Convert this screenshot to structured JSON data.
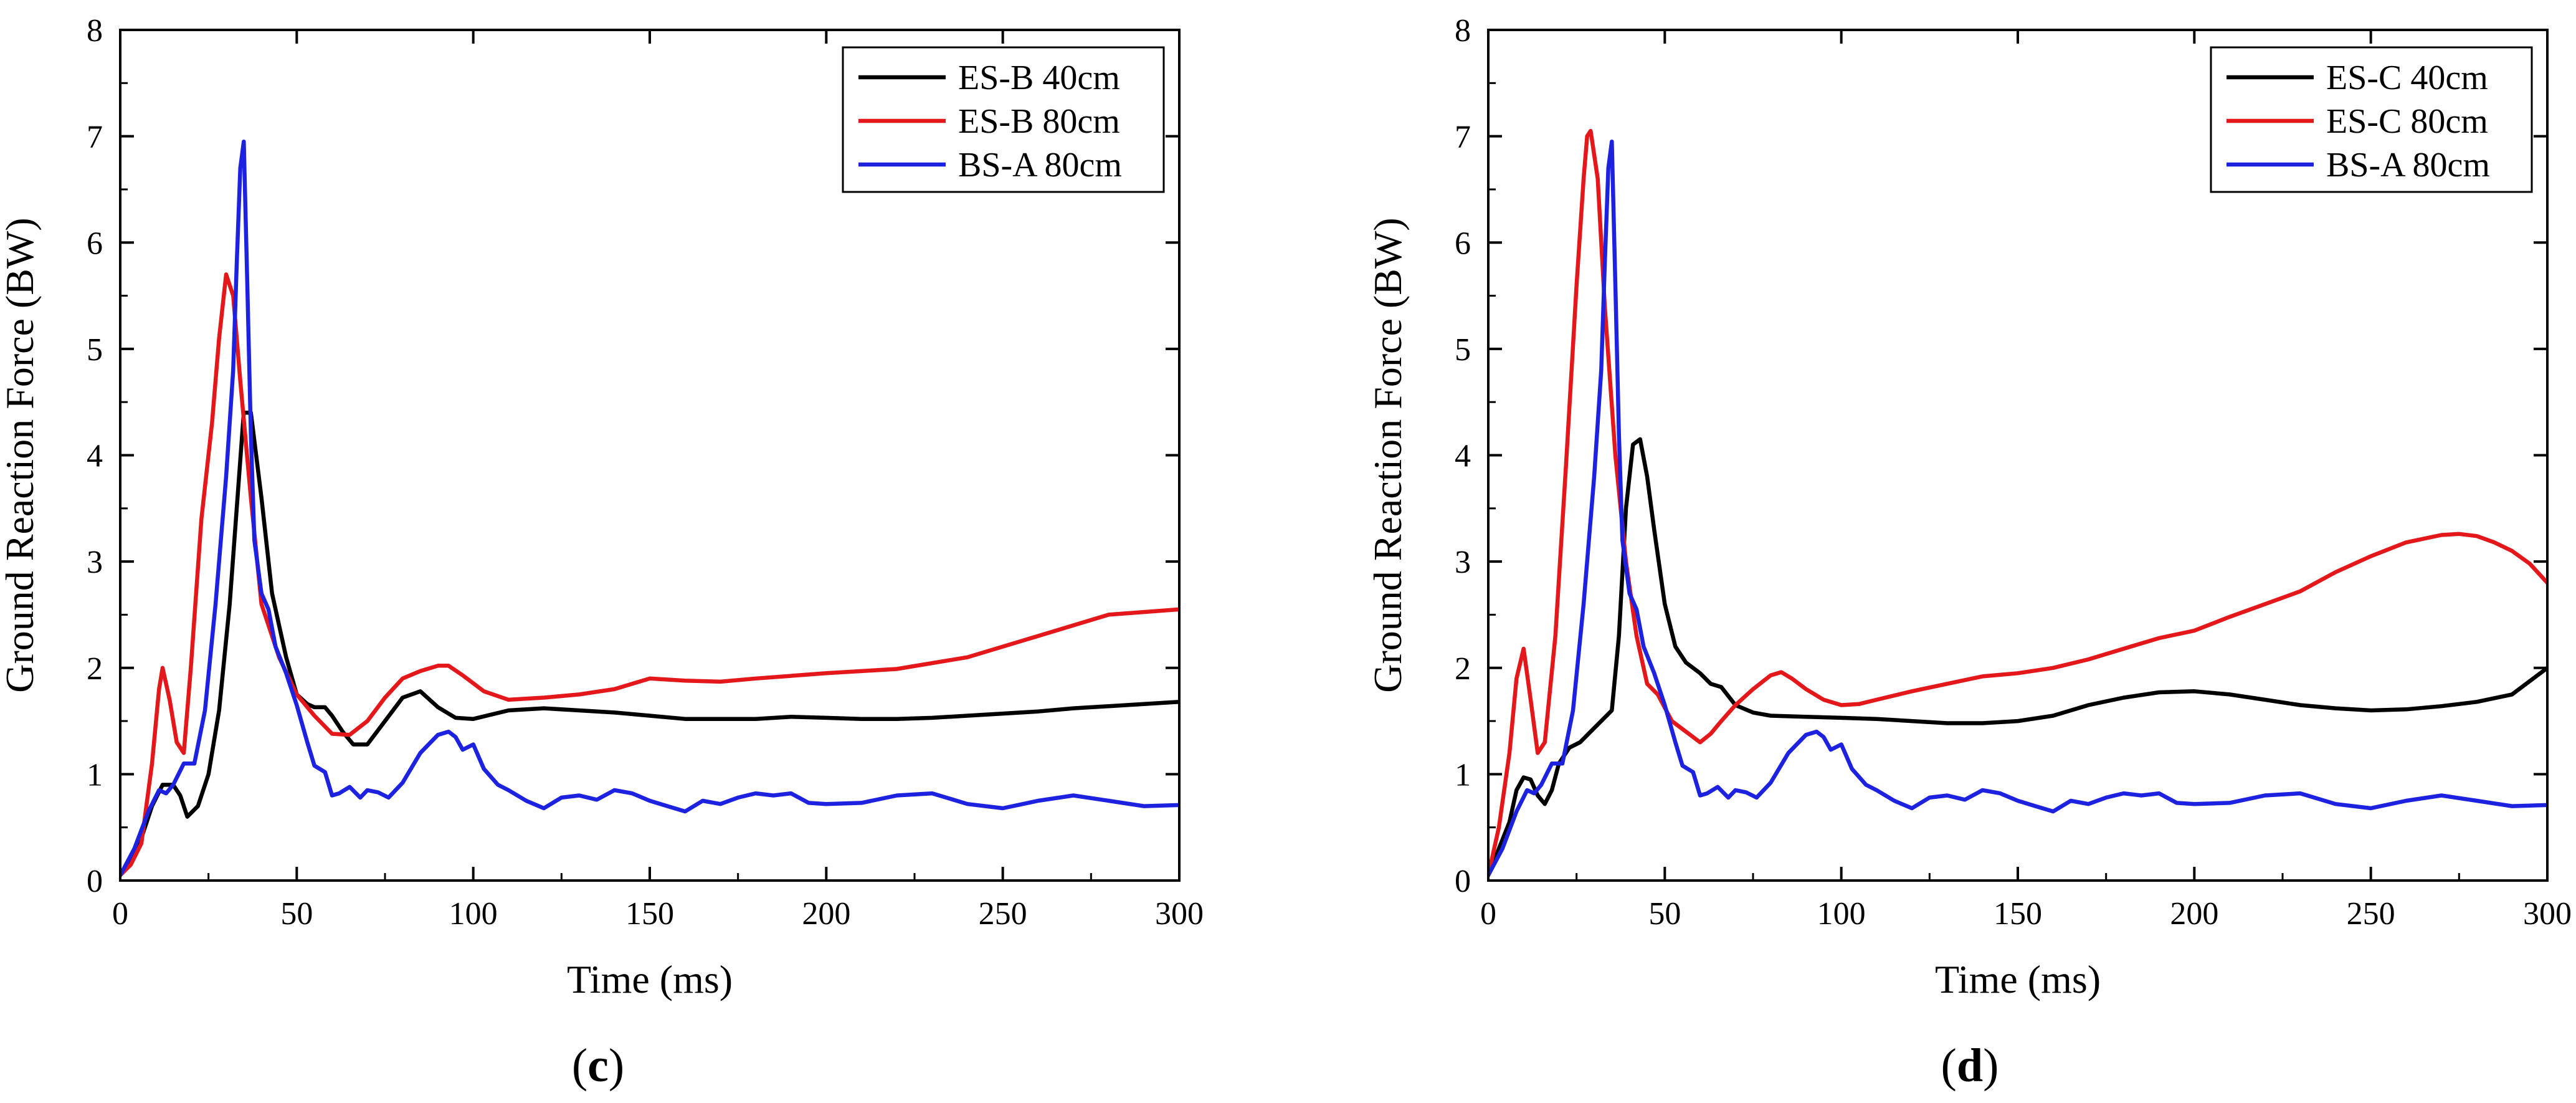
{
  "chart_data": [
    {
      "type": "line",
      "panel_label": "c",
      "xlabel": "Time (ms)",
      "ylabel": "Ground Reaction Force (BW)",
      "xlim": [
        0,
        300
      ],
      "ylim": [
        0,
        8
      ],
      "xticks": [
        0,
        50,
        100,
        150,
        200,
        250,
        300
      ],
      "yticks": [
        0,
        1,
        2,
        3,
        4,
        5,
        6,
        7,
        8
      ],
      "grid": false,
      "legend_position": "top-right",
      "series": [
        {
          "name": "ES-B 40cm",
          "color": "#000000",
          "x": [
            0,
            5,
            9,
            12,
            15,
            17,
            19,
            22,
            25,
            28,
            31,
            33,
            35,
            37,
            40,
            43,
            47,
            50,
            53,
            55,
            58,
            60,
            63,
            66,
            70,
            75,
            80,
            85,
            90,
            95,
            100,
            110,
            120,
            130,
            140,
            150,
            160,
            170,
            180,
            190,
            200,
            210,
            220,
            230,
            240,
            250,
            260,
            270,
            280,
            290,
            300
          ],
          "y": [
            0.05,
            0.3,
            0.7,
            0.9,
            0.9,
            0.8,
            0.6,
            0.7,
            1.0,
            1.6,
            2.6,
            3.5,
            4.4,
            4.4,
            3.6,
            2.7,
            2.1,
            1.75,
            1.66,
            1.63,
            1.63,
            1.55,
            1.4,
            1.28,
            1.28,
            1.5,
            1.72,
            1.78,
            1.63,
            1.53,
            1.52,
            1.6,
            1.62,
            1.6,
            1.58,
            1.55,
            1.52,
            1.52,
            1.52,
            1.54,
            1.53,
            1.52,
            1.52,
            1.53,
            1.55,
            1.57,
            1.59,
            1.62,
            1.64,
            1.66,
            1.68
          ]
        },
        {
          "name": "ES-B 80cm",
          "color": "#e4181b",
          "x": [
            0,
            3,
            6,
            9,
            11,
            12,
            14,
            16,
            18,
            20,
            23,
            26,
            28,
            30,
            32,
            34,
            37,
            40,
            45,
            50,
            55,
            60,
            65,
            70,
            75,
            80,
            85,
            90,
            93,
            97,
            103,
            110,
            120,
            130,
            140,
            150,
            160,
            170,
            180,
            200,
            220,
            240,
            260,
            280,
            300
          ],
          "y": [
            0.05,
            0.15,
            0.35,
            1.1,
            1.8,
            2.0,
            1.7,
            1.3,
            1.2,
            2.0,
            3.4,
            4.3,
            5.1,
            5.7,
            5.5,
            4.7,
            3.6,
            2.6,
            2.1,
            1.75,
            1.55,
            1.38,
            1.37,
            1.5,
            1.72,
            1.9,
            1.97,
            2.02,
            2.02,
            1.93,
            1.78,
            1.7,
            1.72,
            1.75,
            1.8,
            1.9,
            1.88,
            1.87,
            1.9,
            1.95,
            1.99,
            2.1,
            2.3,
            2.5,
            2.55
          ]
        },
        {
          "name": "BS-A 80cm",
          "color": "#1c22e0",
          "x": [
            0,
            4,
            8,
            11,
            13,
            15,
            18,
            21,
            24,
            27,
            30,
            32,
            33,
            34,
            35,
            36,
            37,
            38,
            40,
            42,
            44,
            47,
            50,
            53,
            55,
            58,
            60,
            62,
            65,
            68,
            70,
            73,
            76,
            80,
            85,
            90,
            93,
            95,
            97,
            100,
            103,
            107,
            110,
            115,
            120,
            125,
            130,
            135,
            140,
            145,
            150,
            155,
            160,
            165,
            170,
            175,
            180,
            185,
            190,
            195,
            200,
            210,
            220,
            230,
            240,
            250,
            260,
            270,
            280,
            290,
            300
          ],
          "y": [
            0.05,
            0.3,
            0.65,
            0.85,
            0.82,
            0.9,
            1.1,
            1.1,
            1.6,
            2.6,
            3.8,
            4.8,
            5.8,
            6.7,
            6.95,
            5.6,
            4.2,
            3.2,
            2.7,
            2.55,
            2.2,
            1.95,
            1.65,
            1.3,
            1.08,
            1.02,
            0.8,
            0.82,
            0.88,
            0.78,
            0.85,
            0.83,
            0.78,
            0.92,
            1.2,
            1.37,
            1.4,
            1.35,
            1.23,
            1.28,
            1.05,
            0.9,
            0.85,
            0.75,
            0.68,
            0.78,
            0.8,
            0.76,
            0.85,
            0.82,
            0.75,
            0.7,
            0.65,
            0.75,
            0.72,
            0.78,
            0.82,
            0.8,
            0.82,
            0.73,
            0.72,
            0.73,
            0.8,
            0.82,
            0.72,
            0.68,
            0.75,
            0.8,
            0.75,
            0.7,
            0.71
          ]
        }
      ]
    },
    {
      "type": "line",
      "panel_label": "d",
      "xlabel": "Time (ms)",
      "ylabel": "Ground Reaction Force (BW)",
      "xlim": [
        0,
        300
      ],
      "ylim": [
        0,
        8
      ],
      "xticks": [
        0,
        50,
        100,
        150,
        200,
        250,
        300
      ],
      "yticks": [
        0,
        1,
        2,
        3,
        4,
        5,
        6,
        7,
        8
      ],
      "grid": false,
      "legend_position": "top-right",
      "series": [
        {
          "name": "ES-C 40cm",
          "color": "#000000",
          "x": [
            0,
            3,
            6,
            8,
            10,
            12,
            14,
            16,
            18,
            20,
            23,
            26,
            29,
            32,
            35,
            37,
            39,
            41,
            43,
            45,
            47,
            50,
            53,
            56,
            60,
            63,
            66,
            70,
            75,
            80,
            90,
            100,
            110,
            120,
            130,
            140,
            150,
            160,
            170,
            180,
            190,
            200,
            210,
            220,
            230,
            240,
            250,
            260,
            270,
            280,
            290,
            300
          ],
          "y": [
            0.05,
            0.3,
            0.55,
            0.85,
            0.97,
            0.95,
            0.8,
            0.72,
            0.85,
            1.1,
            1.25,
            1.3,
            1.4,
            1.5,
            1.6,
            2.3,
            3.5,
            4.1,
            4.15,
            3.8,
            3.3,
            2.6,
            2.2,
            2.05,
            1.95,
            1.85,
            1.82,
            1.65,
            1.58,
            1.55,
            1.54,
            1.53,
            1.52,
            1.5,
            1.48,
            1.48,
            1.5,
            1.55,
            1.65,
            1.72,
            1.77,
            1.78,
            1.75,
            1.7,
            1.65,
            1.62,
            1.6,
            1.61,
            1.64,
            1.68,
            1.75,
            2.0
          ]
        },
        {
          "name": "ES-C 80cm",
          "color": "#e4181b",
          "x": [
            0,
            3,
            6,
            8,
            10,
            12,
            14,
            16,
            19,
            22,
            25,
            27,
            28,
            29,
            31,
            33,
            36,
            39,
            42,
            45,
            48,
            52,
            56,
            60,
            63,
            66,
            70,
            75,
            80,
            83,
            86,
            90,
            95,
            100,
            105,
            110,
            120,
            130,
            140,
            150,
            160,
            170,
            180,
            190,
            200,
            210,
            220,
            230,
            240,
            250,
            260,
            270,
            275,
            280,
            285,
            290,
            295,
            300
          ],
          "y": [
            0.05,
            0.5,
            1.2,
            1.9,
            2.18,
            1.7,
            1.2,
            1.3,
            2.3,
            3.9,
            5.6,
            6.6,
            7.0,
            7.05,
            6.6,
            5.4,
            4.0,
            3.0,
            2.3,
            1.85,
            1.75,
            1.5,
            1.4,
            1.3,
            1.38,
            1.5,
            1.65,
            1.8,
            1.93,
            1.96,
            1.9,
            1.8,
            1.7,
            1.65,
            1.66,
            1.7,
            1.78,
            1.85,
            1.92,
            1.95,
            2.0,
            2.08,
            2.18,
            2.28,
            2.35,
            2.48,
            2.6,
            2.72,
            2.9,
            3.05,
            3.18,
            3.25,
            3.26,
            3.24,
            3.18,
            3.1,
            2.98,
            2.8
          ]
        },
        {
          "name": "BS-A 80cm",
          "color": "#1c22e0",
          "x": [
            0,
            4,
            8,
            11,
            13,
            15,
            18,
            21,
            24,
            27,
            30,
            32,
            33,
            34,
            35,
            36,
            37,
            38,
            40,
            42,
            44,
            47,
            50,
            53,
            55,
            58,
            60,
            62,
            65,
            68,
            70,
            73,
            76,
            80,
            85,
            90,
            93,
            95,
            97,
            100,
            103,
            107,
            110,
            115,
            120,
            125,
            130,
            135,
            140,
            145,
            150,
            155,
            160,
            165,
            170,
            175,
            180,
            185,
            190,
            195,
            200,
            210,
            220,
            230,
            240,
            250,
            260,
            270,
            280,
            290,
            300
          ],
          "y": [
            0.05,
            0.3,
            0.65,
            0.85,
            0.82,
            0.9,
            1.1,
            1.1,
            1.6,
            2.6,
            3.8,
            4.8,
            5.8,
            6.7,
            6.95,
            5.6,
            4.2,
            3.2,
            2.7,
            2.55,
            2.2,
            1.95,
            1.65,
            1.3,
            1.08,
            1.02,
            0.8,
            0.82,
            0.88,
            0.78,
            0.85,
            0.83,
            0.78,
            0.92,
            1.2,
            1.37,
            1.4,
            1.35,
            1.23,
            1.28,
            1.05,
            0.9,
            0.85,
            0.75,
            0.68,
            0.78,
            0.8,
            0.76,
            0.85,
            0.82,
            0.75,
            0.7,
            0.65,
            0.75,
            0.72,
            0.78,
            0.82,
            0.8,
            0.82,
            0.73,
            0.72,
            0.73,
            0.8,
            0.82,
            0.72,
            0.68,
            0.75,
            0.8,
            0.75,
            0.7,
            0.71
          ]
        }
      ]
    }
  ]
}
